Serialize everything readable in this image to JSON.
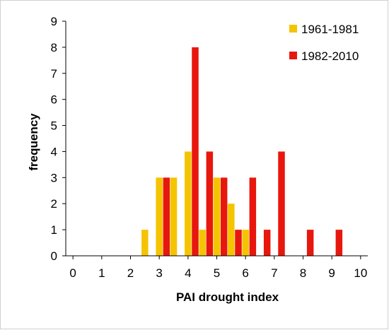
{
  "chart_data": {
    "type": "bar",
    "xlabel": "PAI drought index",
    "ylabel": "frequency",
    "xlim": [
      -0.25,
      10.25
    ],
    "ylim": [
      0,
      9
    ],
    "x_ticks": [
      0,
      1,
      2,
      3,
      4,
      5,
      6,
      7,
      8,
      9,
      10
    ],
    "y_ticks": [
      0,
      1,
      2,
      3,
      4,
      5,
      6,
      7,
      8,
      9
    ],
    "grid": false,
    "legend_position": "top-right",
    "series": [
      {
        "name": "1961-1981",
        "color": "#f5c400",
        "points": [
          {
            "x": 2.5,
            "y": 1
          },
          {
            "x": 3.0,
            "y": 3
          },
          {
            "x": 3.5,
            "y": 3
          },
          {
            "x": 4.0,
            "y": 4
          },
          {
            "x": 4.5,
            "y": 1
          },
          {
            "x": 5.0,
            "y": 3
          },
          {
            "x": 5.5,
            "y": 2
          },
          {
            "x": 6.0,
            "y": 1
          }
        ]
      },
      {
        "name": "1982-2010",
        "color": "#e8170e",
        "points": [
          {
            "x": 3.25,
            "y": 3
          },
          {
            "x": 4.25,
            "y": 8
          },
          {
            "x": 4.75,
            "y": 4
          },
          {
            "x": 5.25,
            "y": 3
          },
          {
            "x": 5.75,
            "y": 1
          },
          {
            "x": 6.25,
            "y": 3
          },
          {
            "x": 6.75,
            "y": 1
          },
          {
            "x": 7.25,
            "y": 4
          },
          {
            "x": 8.25,
            "y": 1
          },
          {
            "x": 9.25,
            "y": 1
          }
        ]
      }
    ]
  }
}
